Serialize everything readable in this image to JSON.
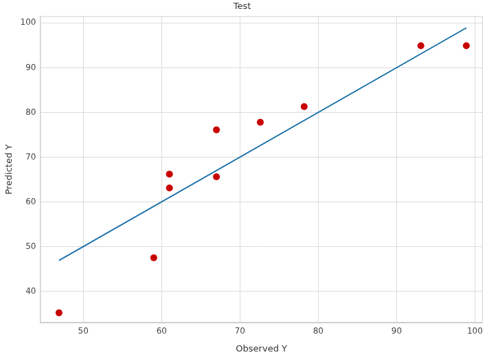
{
  "chart_data": {
    "type": "scatter",
    "title": "Test",
    "x_label": "Observed Y",
    "y_label": "Predicted Y",
    "series": [
      {
        "type": "scatter",
        "color": "#c80000",
        "marker": "circle",
        "x": [
          46.9,
          59.0,
          61.0,
          61.0,
          67.0,
          67.0,
          72.6,
          78.2,
          93.1,
          98.9
        ],
        "values": [
          35.2,
          47.5,
          66.2,
          63.1,
          76.1,
          65.6,
          77.8,
          81.3,
          94.9,
          94.9
        ]
      },
      {
        "type": "line",
        "color": "#1b72a8",
        "line_style": "solid",
        "x": [
          46.9,
          98.9
        ],
        "values": [
          46.9,
          98.9
        ]
      }
    ],
    "xlim": [
      44.5,
      101
    ],
    "xticks": [
      50,
      60,
      70,
      80,
      90,
      100
    ],
    "ylim": [
      33,
      101.5
    ],
    "yticks": [
      40,
      50,
      60,
      70,
      80,
      90,
      100
    ],
    "grid": true
  }
}
